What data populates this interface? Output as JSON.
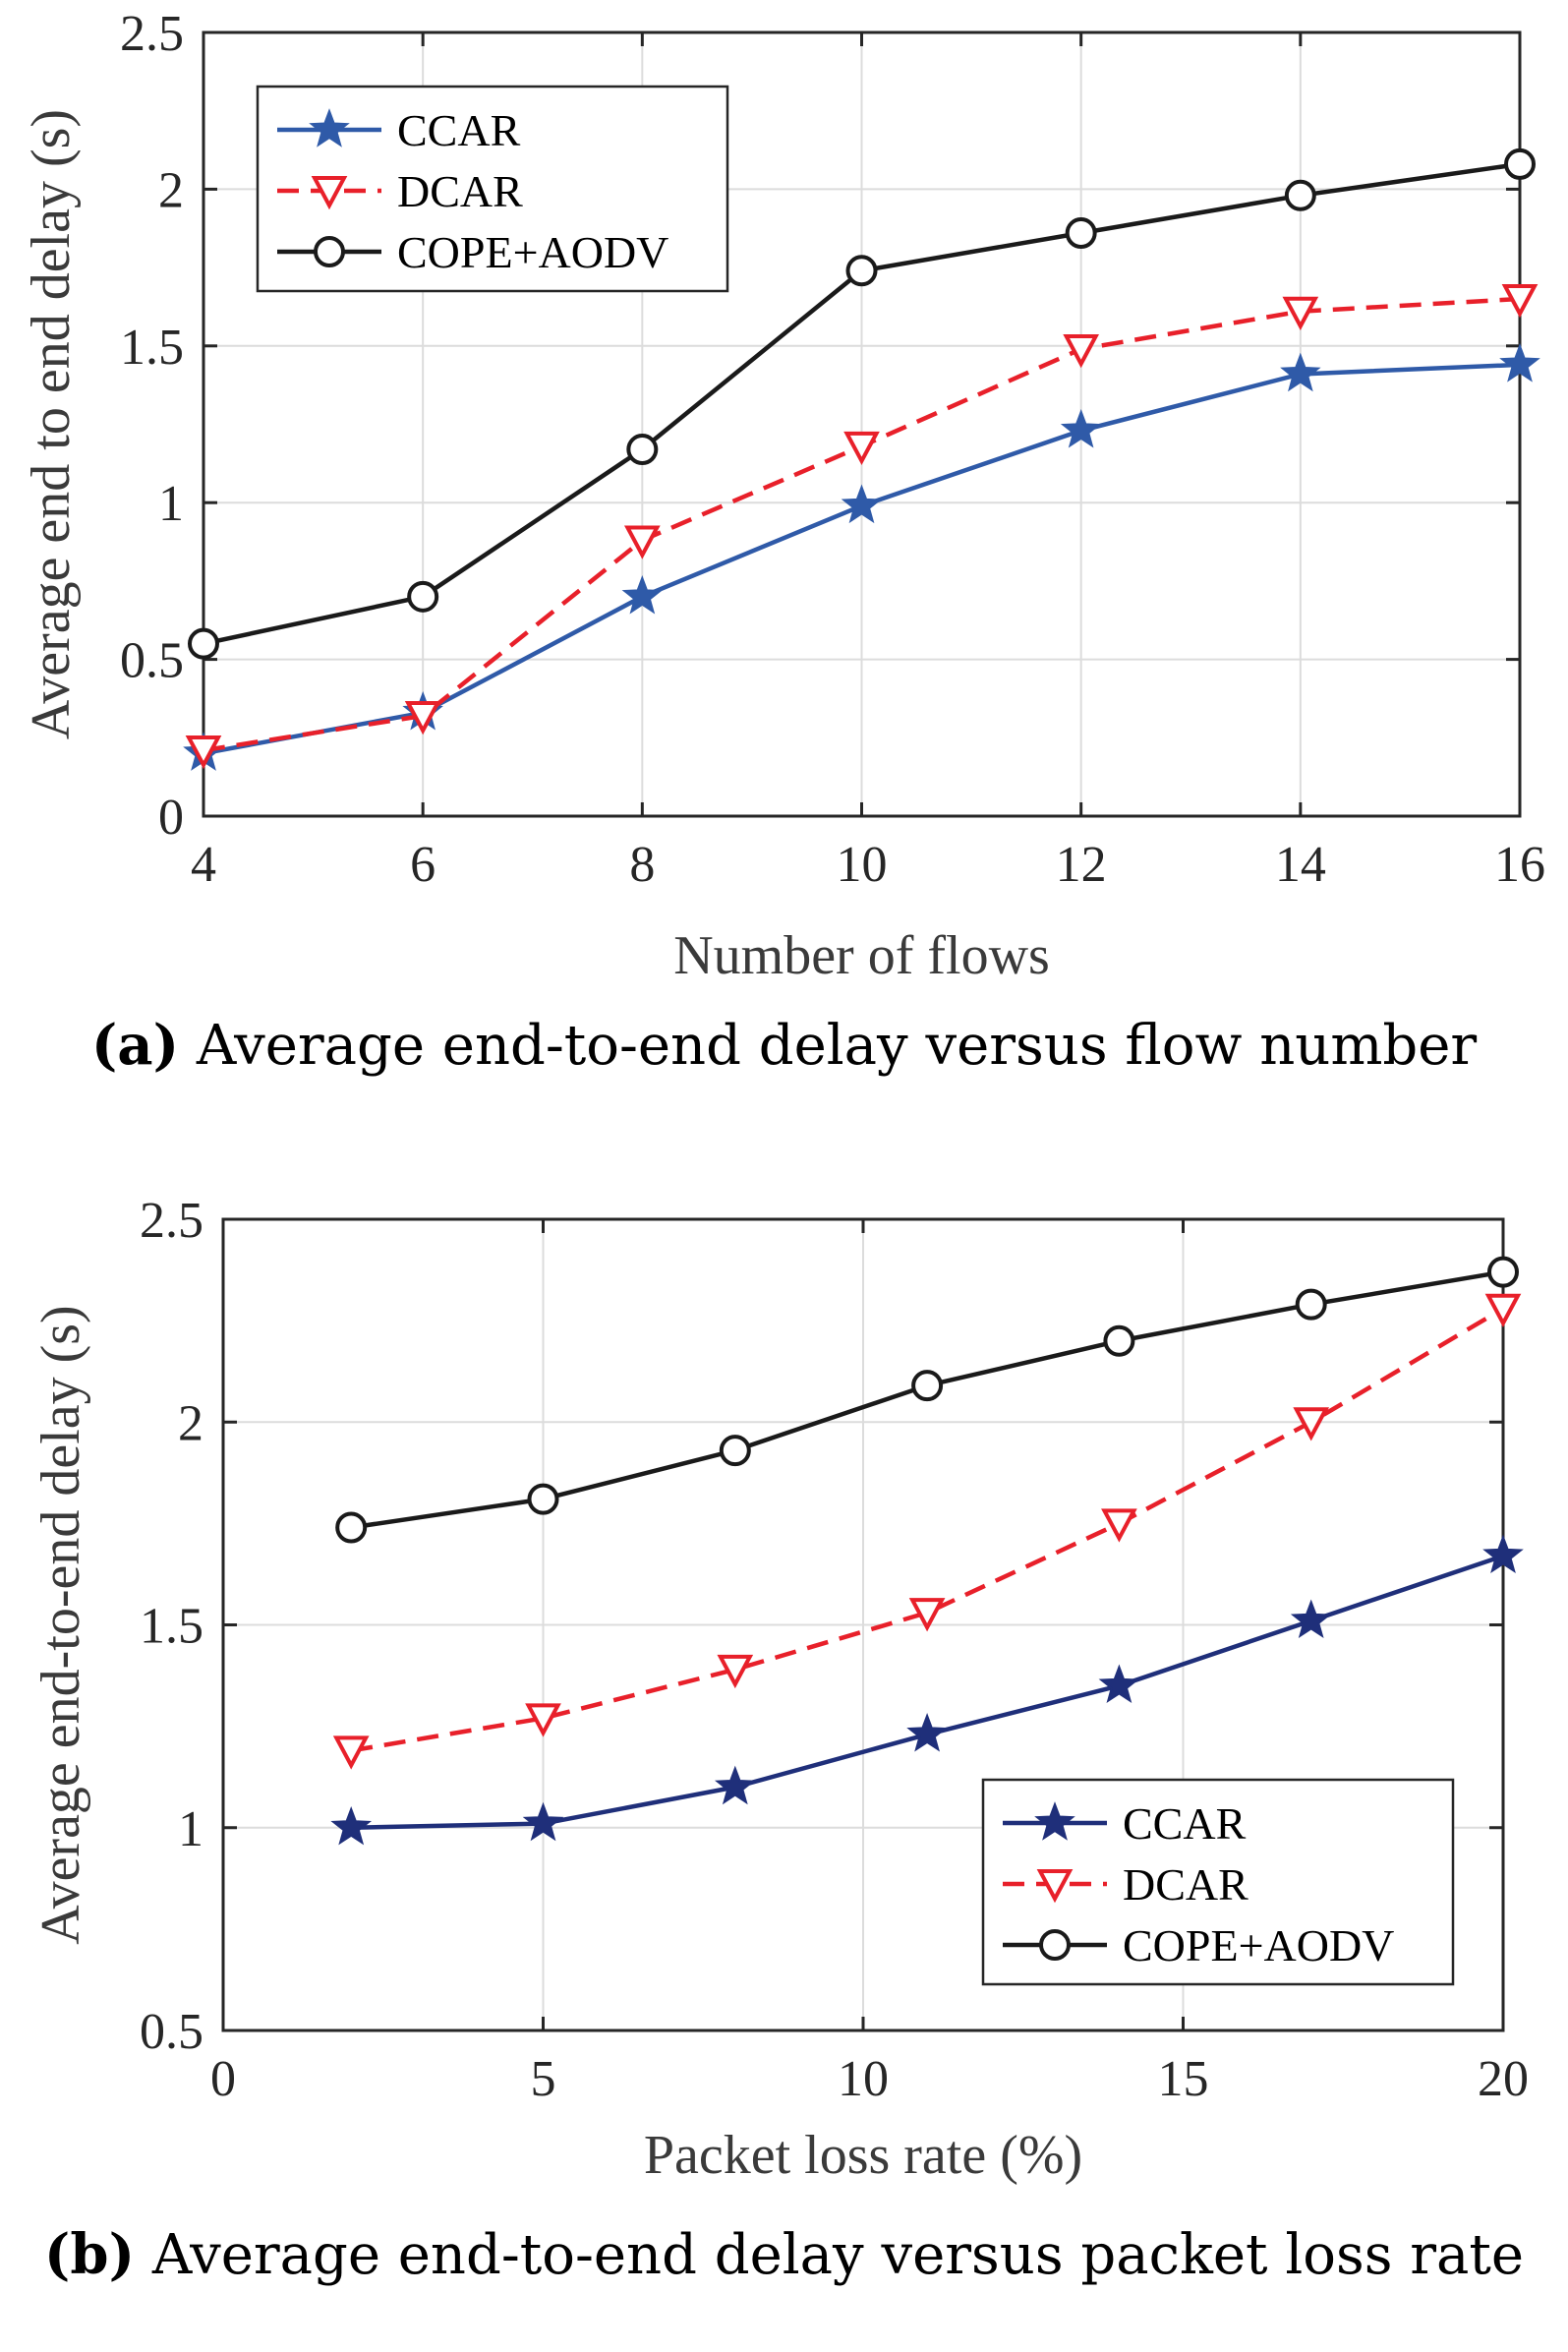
{
  "chart_data": [
    {
      "id": "a",
      "type": "line",
      "caption_letter": "(a)",
      "caption_text": "Average end-to-end delay versus flow number",
      "xlabel": "Number of flows",
      "ylabel": "Average end to end delay (s)",
      "xlim": [
        4,
        16
      ],
      "ylim": [
        0,
        2.5
      ],
      "xticks": [
        4,
        6,
        8,
        10,
        12,
        14,
        16
      ],
      "yticks": [
        0,
        0.5,
        1,
        1.5,
        2,
        2.5
      ],
      "ytick_labels": [
        "0",
        "0.5",
        "1",
        "1.5",
        "2",
        "2.5"
      ],
      "grid": true,
      "legend_position": "top-left",
      "x": [
        4,
        6,
        8,
        10,
        12,
        14,
        16
      ],
      "series": [
        {
          "name": "CCAR",
          "marker": "star",
          "style": "solid",
          "color": "#2f5aa8",
          "values": [
            0.2,
            0.33,
            0.7,
            0.99,
            1.23,
            1.41,
            1.44
          ]
        },
        {
          "name": "DCAR",
          "marker": "triangle-down",
          "style": "dashed",
          "color": "#e8202a",
          "values": [
            0.21,
            0.32,
            0.88,
            1.18,
            1.49,
            1.61,
            1.65
          ]
        },
        {
          "name": "COPE+AODV",
          "marker": "circle",
          "style": "solid",
          "color": "#1a1a1a",
          "values": [
            0.55,
            0.7,
            1.17,
            1.74,
            1.86,
            1.98,
            2.08
          ]
        }
      ]
    },
    {
      "id": "b",
      "type": "line",
      "caption_letter": "(b)",
      "caption_text": "Average end-to-end delay versus packet loss rate",
      "xlabel": "Packet loss rate (%)",
      "ylabel": "Average end-to-end delay (s)",
      "xlim": [
        0,
        20
      ],
      "ylim": [
        0.5,
        2.5
      ],
      "xticks": [
        0,
        5,
        10,
        15,
        20
      ],
      "yticks": [
        0.5,
        1,
        1.5,
        2,
        2.5
      ],
      "ytick_labels": [
        "0.5",
        "1",
        "1.5",
        "2",
        "2.5"
      ],
      "grid": true,
      "legend_position": "bottom-right",
      "x": [
        2,
        5,
        8,
        11,
        14,
        17,
        20
      ],
      "series": [
        {
          "name": "CCAR",
          "marker": "star",
          "style": "solid",
          "color": "#1f2f7a",
          "values": [
            1.0,
            1.01,
            1.1,
            1.23,
            1.35,
            1.51,
            1.67
          ]
        },
        {
          "name": "DCAR",
          "marker": "triangle-down",
          "style": "dashed",
          "color": "#e8202a",
          "values": [
            1.19,
            1.27,
            1.39,
            1.53,
            1.75,
            2.0,
            2.28
          ]
        },
        {
          "name": "COPE+AODV",
          "marker": "circle",
          "style": "solid",
          "color": "#1a1a1a",
          "values": [
            1.74,
            1.81,
            1.93,
            2.09,
            2.2,
            2.29,
            2.37
          ]
        }
      ]
    }
  ]
}
